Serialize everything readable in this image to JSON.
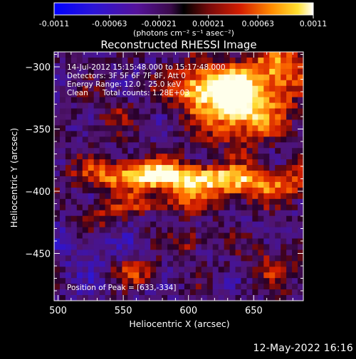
{
  "colorbar": {
    "ticks": [
      "-0.0011",
      "-0.00063",
      "-0.00021",
      "0.00021",
      "0.00063",
      "0.0011"
    ],
    "unit_label": "(photons cm⁻² s⁻¹ asec⁻²)",
    "range": [
      -0.0011,
      0.0011
    ]
  },
  "chart_data": {
    "type": "heatmap",
    "title": "Reconstructed RHESSI Image",
    "xlabel": "Heliocentric X (arcsec)",
    "ylabel": "Heliocentric Y (arcsec)",
    "x_ticks": [
      500,
      550,
      600,
      650
    ],
    "y_ticks": [
      -300,
      -350,
      -400,
      -450
    ],
    "xlim": [
      497,
      688
    ],
    "ylim": [
      -488,
      -288
    ],
    "colormap": "black-purple-red-yellow-white",
    "peak": [
      633,
      -334
    ],
    "annotations": {
      "time": "14-Jul-2012 15:15:48.000 to 15:17:48.000",
      "detectors": "Detectors: 3F 5F 6F 7F 8F, Att 0",
      "energy": "Energy Range: 12.0 - 25.0 keV",
      "method": "Clean",
      "counts": "Total counts: 1.28E+03",
      "peak_text": "Position of Peak = [633,-334]"
    }
  },
  "footer": {
    "date": "12-May-2022 16:16"
  }
}
